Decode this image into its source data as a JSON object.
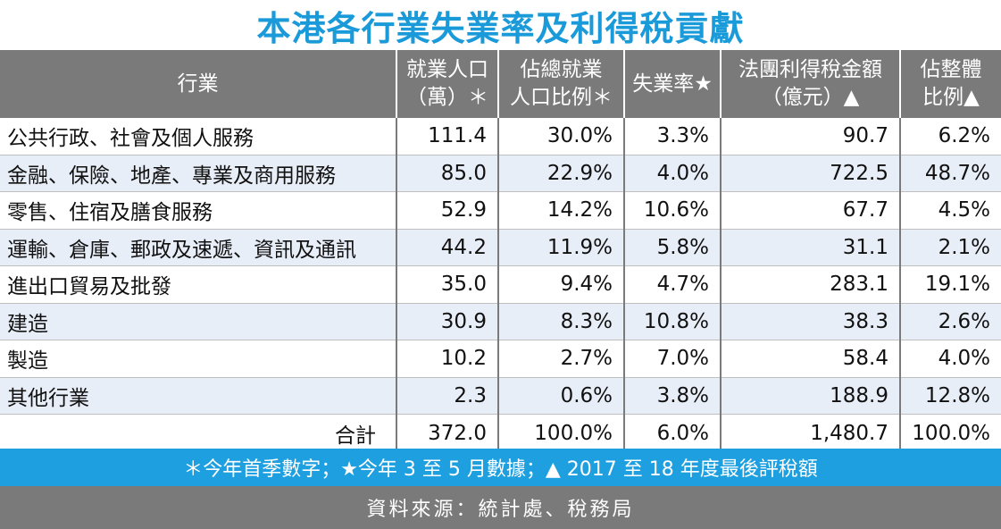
{
  "title": "本港各行業失業率及利得稅貢獻",
  "header": {
    "industry": "行業",
    "employment": [
      "就業人口",
      "（萬）＊"
    ],
    "employment_share": [
      "佔總就業",
      "人口比例＊"
    ],
    "unemployment_rate": "失業率★",
    "profits_tax": [
      "法團利得稅金額",
      "（億元）▲"
    ],
    "profits_share": [
      "佔整體",
      "比例▲"
    ]
  },
  "rows": [
    {
      "industry": "公共行政、社會及個人服務",
      "employment": "111.4",
      "employment_share": "30.0%",
      "unemployment_rate": "3.3%",
      "profits_tax": "90.7",
      "profits_share": "6.2%"
    },
    {
      "industry": "金融、保險、地產、專業及商用服務",
      "employment": "85.0",
      "employment_share": "22.9%",
      "unemployment_rate": "4.0%",
      "profits_tax": "722.5",
      "profits_share": "48.7%"
    },
    {
      "industry": "零售、住宿及膳食服務",
      "employment": "52.9",
      "employment_share": "14.2%",
      "unemployment_rate": "10.6%",
      "profits_tax": "67.7",
      "profits_share": "4.5%"
    },
    {
      "industry": "運輸、倉庫、郵政及速遞、資訊及通訊",
      "employment": "44.2",
      "employment_share": "11.9%",
      "unemployment_rate": "5.8%",
      "profits_tax": "31.1",
      "profits_share": "2.1%"
    },
    {
      "industry": "進出口貿易及批發",
      "employment": "35.0",
      "employment_share": "9.4%",
      "unemployment_rate": "4.7%",
      "profits_tax": "283.1",
      "profits_share": "19.1%"
    },
    {
      "industry": "建造",
      "employment": "30.9",
      "employment_share": "8.3%",
      "unemployment_rate": "10.8%",
      "profits_tax": "38.3",
      "profits_share": "2.6%"
    },
    {
      "industry": "製造",
      "employment": "10.2",
      "employment_share": "2.7%",
      "unemployment_rate": "7.0%",
      "profits_tax": "58.4",
      "profits_share": "4.0%"
    },
    {
      "industry": "其他行業",
      "employment": "2.3",
      "employment_share": "0.6%",
      "unemployment_rate": "3.8%",
      "profits_tax": "188.9",
      "profits_share": "12.8%"
    }
  ],
  "total": {
    "label": "合計",
    "employment": "372.0",
    "employment_share": "100.0%",
    "unemployment_rate": "6.0%",
    "profits_tax": "1,480.7",
    "profits_share": "100.0%"
  },
  "footnote": "＊今年首季數字；★今年 3 至 5 月數據；▲ 2017 至 18 年度最後評稅額",
  "source": "資料來源：統計處、稅務局",
  "colors": {
    "title": "#1a9ad8",
    "header_bg": "#7a7a7a",
    "stripe": "#e8eef8",
    "footnote_bg": "#1e9fe0"
  }
}
